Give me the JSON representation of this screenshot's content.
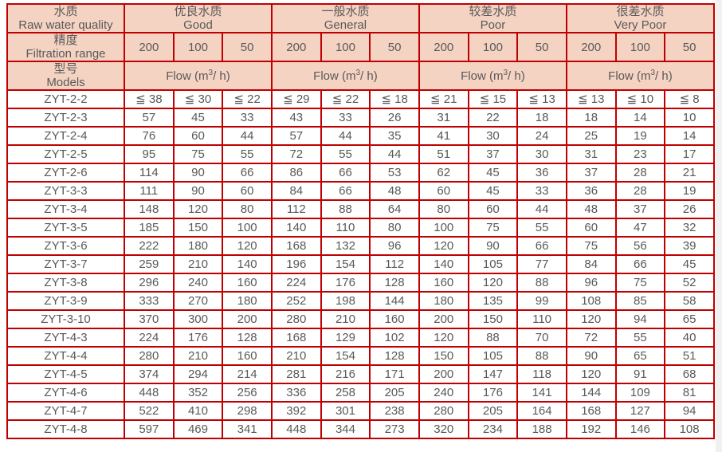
{
  "palette": {
    "border_red": "#c00000",
    "header_bg": "#f5d3c3",
    "text_gray": "#595959",
    "page_bg": "#ffffff",
    "scrollbar_track": "#f1f1f1"
  },
  "header": {
    "raw_water": {
      "zh": "水质",
      "en": "Raw water quality"
    },
    "filtration": {
      "zh": "精度",
      "en": "Filtration range"
    },
    "models": {
      "zh": "型号",
      "en": "Models"
    },
    "quality_groups": [
      {
        "zh": "优良水质",
        "en": "Good"
      },
      {
        "zh": "一般水质",
        "en": "General"
      },
      {
        "zh": "较差水质",
        "en": "Poor"
      },
      {
        "zh": "很差水质",
        "en": "Very Poor"
      }
    ],
    "filtration_row": [
      "200",
      "100",
      "50",
      "200",
      "100",
      "50",
      "200",
      "100",
      "50",
      "200",
      "100",
      "50"
    ],
    "flow": {
      "prefix": "Flow (m",
      "sup": "3",
      "suffix": "/ h)"
    }
  },
  "table": {
    "rows": [
      {
        "model": "ZYT-2-2",
        "values": [
          "≦ 38",
          "≦ 30",
          "≦ 22",
          "≦ 29",
          "≦ 22",
          "≦ 18",
          "≦ 21",
          "≦ 15",
          "≦ 13",
          "≦ 13",
          "≦ 10",
          "≦ 8"
        ]
      },
      {
        "model": "ZYT-2-3",
        "values": [
          "57",
          "45",
          "33",
          "43",
          "33",
          "26",
          "31",
          "22",
          "18",
          "18",
          "14",
          "10"
        ]
      },
      {
        "model": "ZYT-2-4",
        "values": [
          "76",
          "60",
          "44",
          "57",
          "44",
          "35",
          "41",
          "30",
          "24",
          "25",
          "19",
          "14"
        ]
      },
      {
        "model": "ZYT-2-5",
        "values": [
          "95",
          "75",
          "55",
          "72",
          "55",
          "44",
          "51",
          "37",
          "30",
          "31",
          "23",
          "17"
        ]
      },
      {
        "model": "ZYT-2-6",
        "values": [
          "114",
          "90",
          "66",
          "86",
          "66",
          "53",
          "62",
          "45",
          "36",
          "37",
          "28",
          "21"
        ]
      },
      {
        "model": "ZYT-3-3",
        "values": [
          "111",
          "90",
          "60",
          "84",
          "66",
          "48",
          "60",
          "45",
          "33",
          "36",
          "28",
          "19"
        ]
      },
      {
        "model": "ZYT-3-4",
        "values": [
          "148",
          "120",
          "80",
          "112",
          "88",
          "64",
          "80",
          "60",
          "44",
          "48",
          "37",
          "26"
        ]
      },
      {
        "model": "ZYT-3-5",
        "values": [
          "185",
          "150",
          "100",
          "140",
          "110",
          "80",
          "100",
          "75",
          "55",
          "60",
          "47",
          "32"
        ]
      },
      {
        "model": "ZYT-3-6",
        "values": [
          "222",
          "180",
          "120",
          "168",
          "132",
          "96",
          "120",
          "90",
          "66",
          "75",
          "56",
          "39"
        ]
      },
      {
        "model": "ZYT-3-7",
        "values": [
          "259",
          "210",
          "140",
          "196",
          "154",
          "112",
          "140",
          "105",
          "77",
          "84",
          "66",
          "45"
        ]
      },
      {
        "model": "ZYT-3-8",
        "values": [
          "296",
          "240",
          "160",
          "224",
          "176",
          "128",
          "160",
          "120",
          "88",
          "96",
          "75",
          "52"
        ]
      },
      {
        "model": "ZYT-3-9",
        "values": [
          "333",
          "270",
          "180",
          "252",
          "198",
          "144",
          "180",
          "135",
          "99",
          "108",
          "85",
          "58"
        ]
      },
      {
        "model": "ZYT-3-10",
        "values": [
          "370",
          "300",
          "200",
          "280",
          "210",
          "160",
          "200",
          "150",
          "110",
          "120",
          "94",
          "65"
        ]
      },
      {
        "model": "ZYT-4-3",
        "values": [
          "224",
          "176",
          "128",
          "168",
          "129",
          "102",
          "120",
          "88",
          "70",
          "72",
          "55",
          "40"
        ]
      },
      {
        "model": "ZYT-4-4",
        "values": [
          "280",
          "210",
          "160",
          "210",
          "154",
          "128",
          "150",
          "105",
          "88",
          "90",
          "65",
          "51"
        ]
      },
      {
        "model": "ZYT-4-5",
        "values": [
          "374",
          "294",
          "214",
          "281",
          "216",
          "171",
          "200",
          "147",
          "118",
          "120",
          "91",
          "68"
        ]
      },
      {
        "model": "ZYT-4-6",
        "values": [
          "448",
          "352",
          "256",
          "336",
          "258",
          "205",
          "240",
          "176",
          "141",
          "144",
          "109",
          "81"
        ]
      },
      {
        "model": "ZYT-4-7",
        "values": [
          "522",
          "410",
          "298",
          "392",
          "301",
          "238",
          "280",
          "205",
          "164",
          "168",
          "127",
          "94"
        ]
      },
      {
        "model": "ZYT-4-8",
        "values": [
          "597",
          "469",
          "341",
          "448",
          "344",
          "273",
          "320",
          "234",
          "188",
          "192",
          "146",
          "108"
        ]
      }
    ]
  }
}
